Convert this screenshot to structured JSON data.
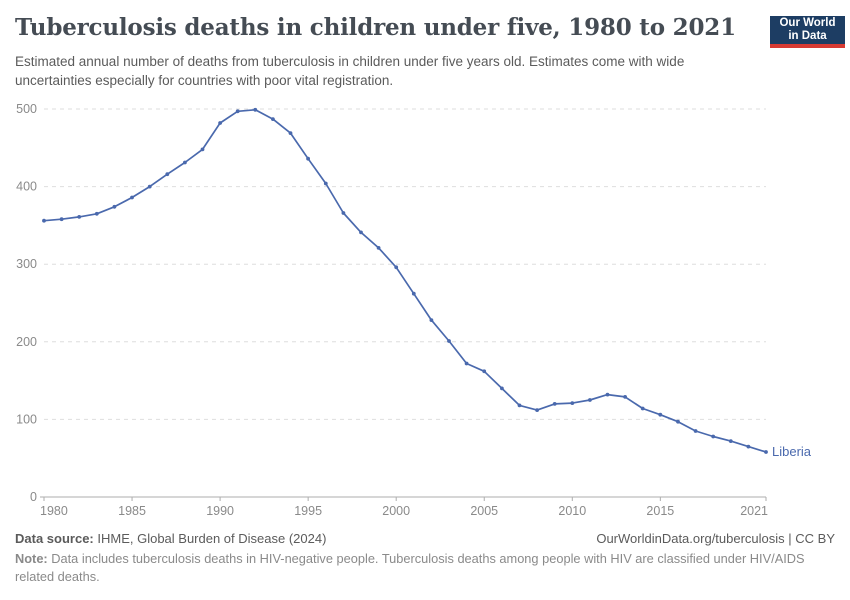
{
  "header": {
    "title": "Tuberculosis deaths in children under five, 1980 to 2021",
    "subtitle": "Estimated annual number of deaths from tuberculosis in children under five years old. Estimates come with wide uncertainties especially for countries with poor vital registration.",
    "logo": {
      "line1": "Our World",
      "line2": "in Data"
    }
  },
  "chart_data": {
    "type": "line",
    "title": "Tuberculosis deaths in children under five, 1980 to 2021",
    "xlabel": "",
    "ylabel": "",
    "xlim": [
      1980,
      2021
    ],
    "ylim": [
      0,
      500
    ],
    "x_ticks": [
      1980,
      1985,
      1990,
      1995,
      2000,
      2005,
      2010,
      2015,
      2021
    ],
    "y_ticks": [
      0,
      100,
      200,
      300,
      400,
      500
    ],
    "grid": "horizontal-dashed",
    "legend_position": "end-of-line-label",
    "line_color": "#4a69ad",
    "x": [
      1980,
      1981,
      1982,
      1983,
      1984,
      1985,
      1986,
      1987,
      1988,
      1989,
      1990,
      1991,
      1992,
      1993,
      1994,
      1995,
      1996,
      1997,
      1998,
      1999,
      2000,
      2001,
      2002,
      2003,
      2004,
      2005,
      2006,
      2007,
      2008,
      2009,
      2010,
      2011,
      2012,
      2013,
      2014,
      2015,
      2016,
      2017,
      2018,
      2019,
      2020,
      2021
    ],
    "series": [
      {
        "name": "Liberia",
        "values": [
          356,
          358,
          361,
          365,
          374,
          386,
          400,
          416,
          431,
          448,
          482,
          497,
          499,
          487,
          469,
          436,
          404,
          366,
          341,
          321,
          296,
          262,
          228,
          201,
          172,
          162,
          140,
          118,
          112,
          120,
          121,
          125,
          132,
          129,
          114,
          106,
          97,
          85,
          78,
          72,
          65,
          58
        ]
      }
    ]
  },
  "footer": {
    "source_label": "Data source:",
    "source_text": " IHME, Global Burden of Disease (2024)",
    "link_text": "OurWorldinData.org/tuberculosis | CC BY",
    "note_label": "Note:",
    "note_text": " Data includes tuberculosis deaths in HIV-negative people. Tuberculosis deaths among people with HIV are classified under HIV/AIDS related deaths."
  }
}
